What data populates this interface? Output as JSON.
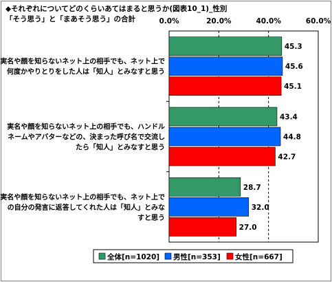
{
  "title": "◆それぞれについてどのくらいあてはまると思うか(図表10_1)_性別",
  "subtitle": "「そう思う」と「まあそう思う」の合計",
  "chart_data": {
    "type": "bar",
    "orientation": "horizontal",
    "xlim": [
      0,
      60
    ],
    "ticks": [
      "0.0%",
      "20.0%",
      "40.0%",
      "60.0%"
    ],
    "tick_values": [
      0,
      20,
      40,
      60
    ],
    "grid": true,
    "categories": [
      [
        "実名や顔を知らないネット上の相手でも、ネット上で",
        "何度かやりとりをした人は「知人」とみなすと思う"
      ],
      [
        "実名や顔を知らないネット上の相手でも、ハンドル",
        "ネームやアバターなどの、決まった呼び名で交流し",
        "たら「知人」とみなすと思う"
      ],
      [
        "実名や顔を知らないネット上の相手でも、ネット上で",
        "の自分の発言に返答してくれた人は「知人」とみな",
        "すと思う"
      ]
    ],
    "series": [
      {
        "name": "全体[n=1020]",
        "color": "#339966",
        "values": [
          45.3,
          43.4,
          28.7
        ]
      },
      {
        "name": "男性[n=353]",
        "color": "#0066ff",
        "values": [
          45.6,
          44.8,
          32.0
        ]
      },
      {
        "name": "女性[n=667]",
        "color": "#ff0000",
        "values": [
          45.1,
          42.7,
          27.0
        ]
      }
    ],
    "legend_position": "bottom"
  }
}
